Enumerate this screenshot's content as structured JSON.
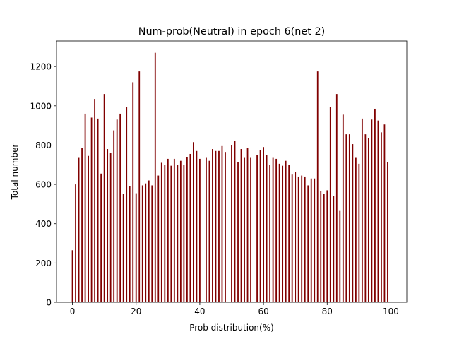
{
  "chart_data": {
    "type": "bar",
    "title": "Num-prob(Neutral) in epoch 6(net 2)",
    "xlabel": "Prob distribution(%)",
    "ylabel": "Total number",
    "xlim": [
      -5,
      105
    ],
    "ylim": [
      0,
      1330
    ],
    "xticks": [
      0,
      20,
      40,
      60,
      80,
      100
    ],
    "yticks": [
      0,
      200,
      400,
      600,
      800,
      1000,
      1200
    ],
    "bar_color": "#800000",
    "grid": false,
    "x": [
      0,
      1,
      2,
      3,
      4,
      5,
      6,
      7,
      8,
      9,
      10,
      11,
      12,
      13,
      14,
      15,
      16,
      17,
      18,
      19,
      20,
      21,
      22,
      23,
      24,
      25,
      26,
      27,
      28,
      29,
      30,
      31,
      32,
      33,
      34,
      35,
      36,
      37,
      38,
      39,
      40,
      41,
      42,
      43,
      44,
      45,
      46,
      47,
      48,
      49,
      50,
      51,
      52,
      53,
      54,
      55,
      56,
      57,
      58,
      59,
      60,
      61,
      62,
      63,
      64,
      65,
      66,
      67,
      68,
      69,
      70,
      71,
      72,
      73,
      74,
      75,
      76,
      77,
      78,
      79,
      80,
      81,
      82,
      83,
      84,
      85,
      86,
      87,
      88,
      89,
      90,
      91,
      92,
      93,
      94,
      95,
      96,
      97,
      98,
      99
    ],
    "values": [
      265,
      600,
      735,
      785,
      960,
      745,
      940,
      1035,
      935,
      655,
      1060,
      780,
      760,
      875,
      930,
      960,
      550,
      995,
      590,
      1120,
      555,
      1175,
      595,
      605,
      620,
      595,
      1270,
      645,
      710,
      700,
      730,
      695,
      730,
      700,
      720,
      700,
      740,
      755,
      815,
      770,
      730,
      0,
      735,
      720,
      780,
      770,
      770,
      795,
      765,
      0,
      800,
      820,
      715,
      780,
      735,
      785,
      735,
      0,
      750,
      775,
      790,
      750,
      700,
      735,
      730,
      705,
      695,
      720,
      700,
      650,
      665,
      640,
      645,
      640,
      595,
      630,
      630,
      1175,
      565,
      550,
      570,
      995,
      540,
      1060,
      465,
      955,
      855,
      855,
      805,
      735,
      705,
      935,
      855,
      835,
      930,
      985,
      925,
      865,
      905,
      715
    ]
  }
}
